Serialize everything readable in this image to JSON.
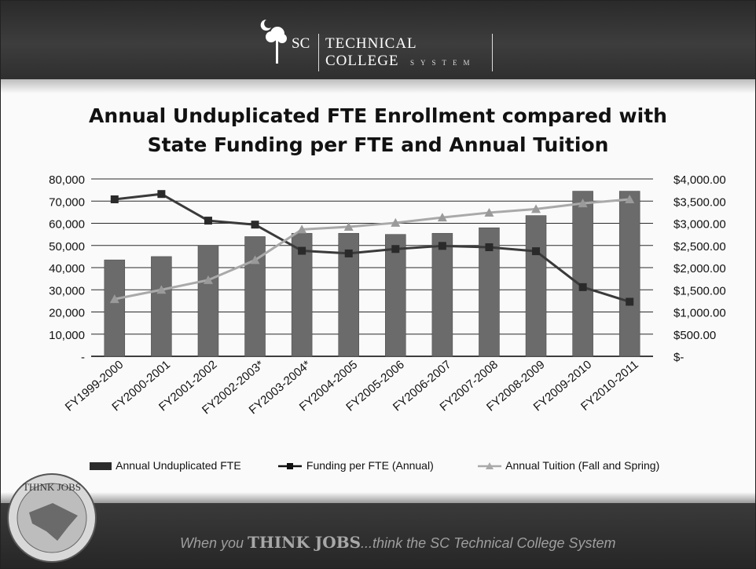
{
  "header": {
    "logo_sc": "SC",
    "logo_name": "TECHNICAL COLLEGE",
    "logo_sub": "SYSTEM"
  },
  "title_line1": "Annual Unduplicated FTE Enrollment compared with",
  "title_line2": "State Funding per FTE and Annual Tuition",
  "colors": {
    "bars": "#6b6b6b",
    "funding_line": "#3a3a3a",
    "tuition_line": "#a9a9a9",
    "grid": "#2a2a2a"
  },
  "chart_data": {
    "type": "bar",
    "categories": [
      "FY1999-2000",
      "FY2000-2001",
      "FY2001-2002",
      "FY2002-2003*",
      "FY2003-2004*",
      "FY2004-2005",
      "FY2005-2006",
      "FY2006-2007",
      "FY2007-2008",
      "FY2008-2009",
      "FY2009-2010",
      "FY2010-2011"
    ],
    "series": [
      {
        "name": "Annual Unduplicated FTE",
        "type": "bar",
        "axis": "left",
        "values": [
          43500,
          45000,
          50000,
          54000,
          55500,
          55500,
          55000,
          55500,
          58000,
          63500,
          74500,
          74500
        ]
      },
      {
        "name": "Funding per FTE (Annual)",
        "type": "line",
        "marker": "square",
        "axis": "right",
        "values": [
          3540,
          3660,
          3060,
          2970,
          2380,
          2320,
          2420,
          2490,
          2460,
          2370,
          1560,
          1230
        ]
      },
      {
        "name": "Annual Tuition (Fall and Spring)",
        "type": "line",
        "marker": "triangle",
        "axis": "right",
        "values": [
          1290,
          1500,
          1720,
          2170,
          2860,
          2920,
          3010,
          3130,
          3240,
          3320,
          3450,
          3540
        ]
      }
    ],
    "left_axis": {
      "min": 0,
      "max": 80000,
      "tick_values": [
        0,
        10000,
        20000,
        30000,
        40000,
        50000,
        60000,
        70000,
        80000
      ],
      "tick_labels": [
        "-",
        "10,000",
        "20,000",
        "30,000",
        "40,000",
        "50,000",
        "60,000",
        "70,000",
        "80,000"
      ]
    },
    "right_axis": {
      "min": 0,
      "max": 4000,
      "tick_values": [
        0,
        500,
        1000,
        1500,
        2000,
        2500,
        3000,
        3500,
        4000
      ],
      "tick_labels": [
        "$-",
        "$500.00",
        "$1,000.00",
        "$1,500.00",
        "$2,000.00",
        "$2,500.00",
        "$3,000.00",
        "$3,500.00",
        "$4,000.00"
      ]
    },
    "grid": true,
    "legend": "bottom"
  },
  "tagline": {
    "pre": "When you ",
    "bold": "THINK JOBS",
    "post": "...think the SC Technical College System"
  },
  "seal_text": "THINK JOBS"
}
